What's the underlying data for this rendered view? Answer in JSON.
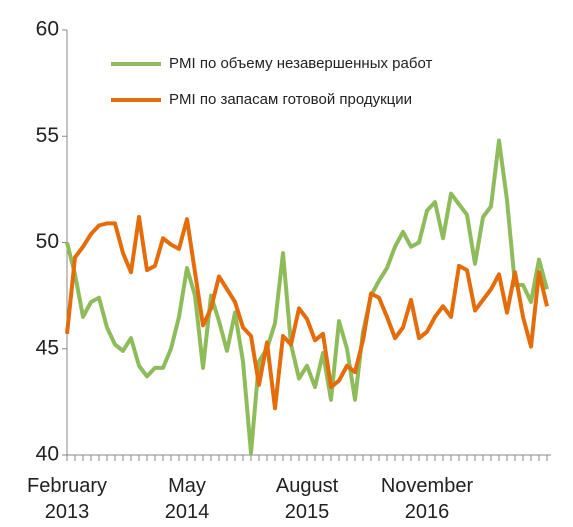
{
  "chart_data": {
    "type": "line",
    "categories": [
      "February 2013",
      null,
      null,
      null,
      null,
      null,
      null,
      null,
      null,
      null,
      null,
      null,
      null,
      null,
      null,
      "May 2014",
      null,
      null,
      null,
      null,
      null,
      null,
      null,
      null,
      null,
      null,
      null,
      null,
      null,
      null,
      "August 2015",
      null,
      null,
      null,
      null,
      null,
      null,
      null,
      null,
      null,
      null,
      null,
      null,
      null,
      null,
      "November 2016",
      null,
      null,
      null,
      null,
      null,
      null,
      null,
      null,
      null,
      null,
      null,
      null,
      null,
      null,
      null
    ],
    "series": [
      {
        "name": "PMI  по объему незавершенных работ",
        "color": "#8fbc5a",
        "values": [
          50,
          48.5,
          46.5,
          47.2,
          47.4,
          46,
          45.2,
          44.9,
          45.5,
          44.2,
          43.7,
          44.1,
          44.1,
          45,
          46.5,
          48.8,
          47.5,
          44.1,
          47.5,
          46.3,
          44.9,
          46.7,
          44.4,
          40.1,
          44.4,
          45,
          46.2,
          49.5,
          45.2,
          43.6,
          44.2,
          43.2,
          44.8,
          42.6,
          46.3,
          45,
          42.6,
          45.8,
          47.5,
          48.2,
          48.8,
          49.8,
          50.5,
          49.8,
          50,
          51.5,
          51.9,
          50.2,
          52.3,
          51.8,
          51.3,
          49,
          51.2,
          51.7,
          54.8,
          52,
          48,
          48,
          47.2,
          49.2,
          47.8
        ]
      },
      {
        "name": "PMI  по запасам готовой продукции",
        "color": "#e46c0a",
        "values": [
          45.7,
          49.3,
          49.8,
          50.4,
          50.8,
          50.9,
          50.9,
          49.5,
          48.6,
          51.2,
          48.7,
          48.9,
          50.2,
          49.9,
          49.7,
          51.1,
          48.6,
          46.1,
          46.9,
          48.4,
          47.8,
          47.2,
          46,
          45.6,
          43.3,
          45.3,
          42.2,
          45.6,
          45.2,
          46.9,
          46.4,
          45.4,
          45.7,
          43.2,
          43.5,
          44.2,
          43.9,
          45.4,
          47.6,
          47.4,
          46.5,
          45.5,
          46,
          47.3,
          45.5,
          45.8,
          46.5,
          47,
          46.5,
          48.9,
          48.7,
          46.8,
          47.3,
          47.8,
          48.5,
          46.7,
          48.6,
          46.5,
          45.1,
          48.6,
          47
        ]
      }
    ],
    "ylim": [
      40,
      60
    ],
    "yticks": [
      40,
      45,
      50,
      55,
      60
    ],
    "grid": false,
    "legend": "upper right"
  }
}
